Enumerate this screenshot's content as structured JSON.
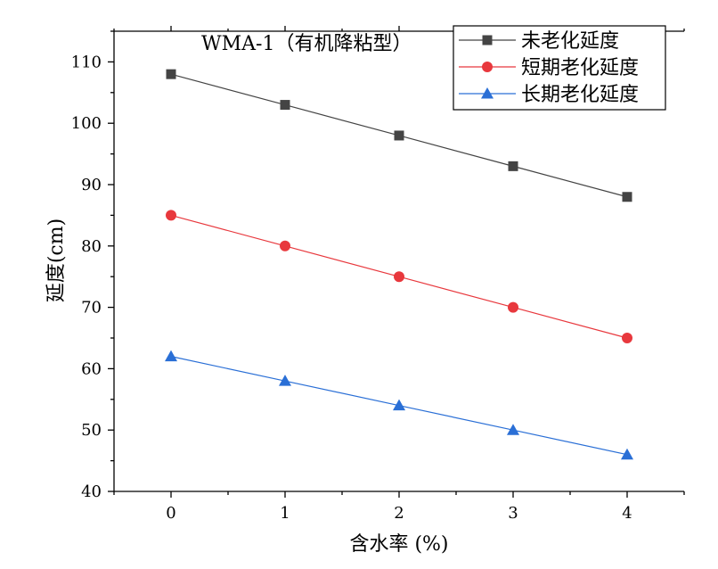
{
  "chart_data": {
    "type": "line",
    "title": "WMA-1（有机降粘型）",
    "xlabel": "含水率 (%)",
    "ylabel": "延度(cm)",
    "x": [
      0,
      1,
      2,
      3,
      4
    ],
    "xlim": [
      -0.5,
      4.5
    ],
    "ylim": [
      40,
      115
    ],
    "xticks": [
      "0",
      "1",
      "2",
      "3",
      "4"
    ],
    "yticks": [
      "40",
      "50",
      "60",
      "70",
      "80",
      "90",
      "100",
      "110"
    ],
    "legend_position": "top-right",
    "series": [
      {
        "name": "未老化延度",
        "values": [
          108,
          103,
          98,
          93,
          88
        ],
        "color": "#444444",
        "marker": "square"
      },
      {
        "name": "短期老化延度",
        "values": [
          85,
          80,
          75,
          70,
          65
        ],
        "color": "#e8383d",
        "marker": "circle"
      },
      {
        "name": "长期老化延度",
        "values": [
          62,
          58,
          54,
          50,
          46
        ],
        "color": "#2a6fd6",
        "marker": "triangle"
      }
    ]
  }
}
